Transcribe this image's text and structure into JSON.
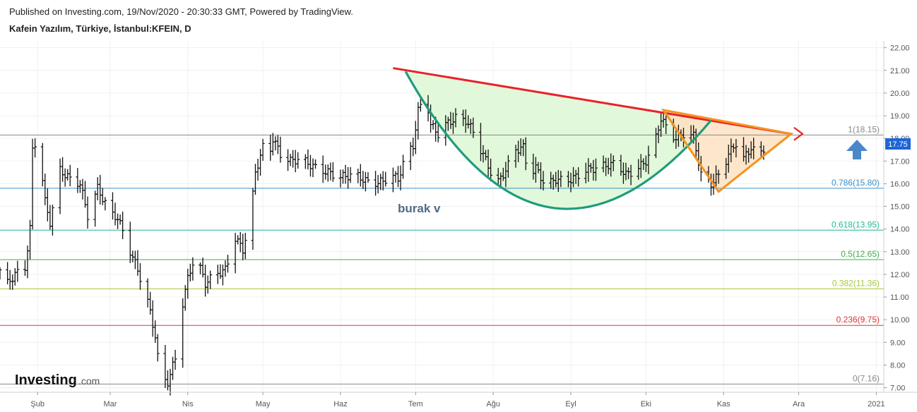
{
  "header": {
    "published": "Published on Investing.com, 19/Nov/2020 - 20:30:33 GMT, Powered by TradingView.",
    "symbol": "Kafein Yazılım, Türkiye, İstanbul:KFEIN, D"
  },
  "watermark": {
    "brand": "Investing",
    "suffix": ".com"
  },
  "annotation_text": "burak v",
  "last_price_label": "17.75",
  "colors": {
    "resistance_line": "#e8222a",
    "cup_curve": "#1f9c7c",
    "cup_fill": "#dff7d6",
    "triangle": "#f5931f",
    "triangle_fill": "#fde2c2",
    "price_bar": "#111111",
    "price_badge": "#1d65d8",
    "arrow_up": "#4a88c8"
  },
  "chart_data": {
    "type": "ohlc",
    "title": "",
    "xlabel": "",
    "ylabel": "",
    "ylim": [
      6.8,
      22.3
    ],
    "xlim": [
      "2020-01-17",
      "2021-01-04"
    ],
    "y_ticks": [
      "7.00",
      "8.00",
      "9.00",
      "10.00",
      "11.00",
      "12.00",
      "13.00",
      "14.00",
      "15.00",
      "16.00",
      "17.00",
      "18.00",
      "19.00",
      "20.00",
      "21.00",
      "22.00"
    ],
    "x_ticks": [
      {
        "date": "2020-02-01",
        "label": "Şub"
      },
      {
        "date": "2020-03-01",
        "label": "Mar"
      },
      {
        "date": "2020-04-01",
        "label": "Nis"
      },
      {
        "date": "2020-05-01",
        "label": "May"
      },
      {
        "date": "2020-06-01",
        "label": "Haz"
      },
      {
        "date": "2020-07-01",
        "label": "Tem"
      },
      {
        "date": "2020-08-01",
        "label": "Ağu"
      },
      {
        "date": "2020-09-01",
        "label": "Eyl"
      },
      {
        "date": "2020-10-01",
        "label": "Eki"
      },
      {
        "date": "2020-11-01",
        "label": "Kas"
      },
      {
        "date": "2020-12-01",
        "label": "Ara"
      },
      {
        "date": "2021-01-01",
        "label": "2021"
      }
    ],
    "fib_levels": [
      {
        "label": "0(7.16)",
        "value": 7.16,
        "color": "#888888"
      },
      {
        "label": "0.236(9.75)",
        "value": 9.75,
        "color": "#d9383a"
      },
      {
        "label": "0.382(11.36)",
        "value": 11.36,
        "color": "#a6c93c"
      },
      {
        "label": "0.5(12.65)",
        "value": 12.65,
        "color": "#3fae49"
      },
      {
        "label": "0.618(13.95)",
        "value": 13.95,
        "color": "#26b89a"
      },
      {
        "label": "0.786(15.80)",
        "value": 15.8,
        "color": "#3a8fc8"
      },
      {
        "label": "1(18.15)",
        "value": 18.15,
        "color": "#888888"
      }
    ],
    "last_price": 17.75,
    "price_anchors": [
      [
        "2020-01-17",
        12.2
      ],
      [
        "2020-01-20",
        11.6
      ],
      [
        "2020-01-23",
        12.0
      ],
      [
        "2020-01-27",
        12.3
      ],
      [
        "2020-01-29",
        14.0
      ],
      [
        "2020-01-30",
        17.5
      ],
      [
        "2020-02-01",
        18.1
      ],
      [
        "2020-02-04",
        15.2
      ],
      [
        "2020-02-06",
        14.3
      ],
      [
        "2020-02-10",
        16.6
      ],
      [
        "2020-02-14",
        16.2
      ],
      [
        "2020-02-18",
        16.0
      ],
      [
        "2020-02-21",
        14.6
      ],
      [
        "2020-02-25",
        15.8
      ],
      [
        "2020-03-01",
        14.7
      ],
      [
        "2020-03-04",
        14.5
      ],
      [
        "2020-03-08",
        13.3
      ],
      [
        "2020-03-12",
        12.2
      ],
      [
        "2020-03-16",
        10.8
      ],
      [
        "2020-03-19",
        9.3
      ],
      [
        "2020-03-21",
        7.4
      ],
      [
        "2020-03-24",
        7.25
      ],
      [
        "2020-03-27",
        8.3
      ],
      [
        "2020-03-29",
        10.2
      ],
      [
        "2020-04-01",
        11.8
      ],
      [
        "2020-04-04",
        12.9
      ],
      [
        "2020-04-08",
        11.6
      ],
      [
        "2020-04-12",
        12.0
      ],
      [
        "2020-04-16",
        12.2
      ],
      [
        "2020-04-20",
        13.6
      ],
      [
        "2020-04-23",
        13.1
      ],
      [
        "2020-04-26",
        14.5
      ],
      [
        "2020-04-28",
        16.5
      ],
      [
        "2020-05-01",
        17.6
      ],
      [
        "2020-05-03",
        17.0
      ],
      [
        "2020-05-05",
        18.0
      ],
      [
        "2020-05-08",
        17.3
      ],
      [
        "2020-05-12",
        17.0
      ],
      [
        "2020-05-16",
        17.1
      ],
      [
        "2020-05-22",
        16.7
      ],
      [
        "2020-05-27",
        16.5
      ],
      [
        "2020-06-01",
        16.3
      ],
      [
        "2020-06-07",
        16.4
      ],
      [
        "2020-06-13",
        16.0
      ],
      [
        "2020-06-18",
        16.1
      ],
      [
        "2020-06-21",
        16.4
      ],
      [
        "2020-06-24",
        16.2
      ],
      [
        "2020-06-27",
        17.2
      ],
      [
        "2020-06-30",
        17.7
      ],
      [
        "2020-07-02",
        19.2
      ],
      [
        "2020-07-05",
        20.0
      ],
      [
        "2020-07-07",
        18.6
      ],
      [
        "2020-07-10",
        18.2
      ],
      [
        "2020-07-13",
        18.6
      ],
      [
        "2020-07-17",
        18.9
      ],
      [
        "2020-07-21",
        18.8
      ],
      [
        "2020-07-24",
        18.3
      ],
      [
        "2020-07-27",
        17.5
      ],
      [
        "2020-07-30",
        16.8
      ],
      [
        "2020-08-02",
        15.9
      ],
      [
        "2020-08-06",
        16.6
      ],
      [
        "2020-08-10",
        17.5
      ],
      [
        "2020-08-13",
        17.6
      ],
      [
        "2020-08-15",
        16.4
      ],
      [
        "2020-08-18",
        16.7
      ],
      [
        "2020-08-22",
        15.9
      ],
      [
        "2020-08-26",
        16.2
      ],
      [
        "2020-08-30",
        16.1
      ],
      [
        "2020-09-03",
        16.3
      ],
      [
        "2020-09-07",
        16.6
      ],
      [
        "2020-09-11",
        16.7
      ],
      [
        "2020-09-15",
        16.8
      ],
      [
        "2020-09-19",
        16.9
      ],
      [
        "2020-09-23",
        16.4
      ],
      [
        "2020-09-27",
        16.6
      ],
      [
        "2020-10-01",
        17.0
      ],
      [
        "2020-10-04",
        17.6
      ],
      [
        "2020-10-07",
        18.9
      ],
      [
        "2020-10-10",
        18.3
      ],
      [
        "2020-10-13",
        18.0
      ],
      [
        "2020-10-16",
        18.2
      ],
      [
        "2020-10-20",
        18.1
      ],
      [
        "2020-10-23",
        16.4
      ],
      [
        "2020-10-27",
        16.0
      ],
      [
        "2020-10-31",
        16.5
      ],
      [
        "2020-11-03",
        17.3
      ],
      [
        "2020-11-06",
        17.8
      ],
      [
        "2020-11-09",
        17.1
      ],
      [
        "2020-11-12",
        17.6
      ],
      [
        "2020-11-15",
        17.2
      ],
      [
        "2020-11-18",
        17.75
      ]
    ],
    "drawings": {
      "resistance": [
        [
          "2020-06-22",
          21.1
        ],
        [
          "2020-11-28",
          18.2
        ]
      ],
      "cup_rim": [
        [
          "2020-06-27",
          20.95
        ],
        [
          "2020-10-27",
          18.8
        ]
      ],
      "cup_bottom": [
        "2020-08-24",
        14.95
      ],
      "triangle": [
        [
          "2020-10-08",
          19.25
        ],
        [
          "2020-10-30",
          15.65
        ],
        [
          "2020-11-28",
          18.2
        ]
      ]
    }
  }
}
